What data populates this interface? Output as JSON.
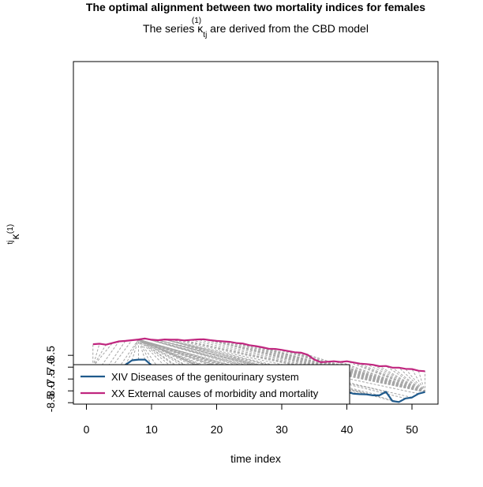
{
  "chart_data": {
    "type": "line",
    "title": "The optimal alignment between two mortality indices for females",
    "subtitle_prefix": "The series κ",
    "subtitle_sup": "(1)",
    "subtitle_sub": "tj",
    "subtitle_suffix": " are derived from the CBD model",
    "xlabel": "time index",
    "ylabel_main": "κ",
    "ylabel_sup": "(1)",
    "ylabel_sub": "tj",
    "xlim": [
      -2,
      54
    ],
    "ylim": [
      -8.56,
      5.9
    ],
    "xticks": [
      0,
      10,
      20,
      30,
      40,
      50
    ],
    "yticks": [
      -6.5,
      -7.0,
      -7.5,
      -8.0,
      -8.5
    ],
    "ytick_labels": [
      "-6.5",
      "-7.0",
      "-7.5",
      "-8.0",
      "-8.5"
    ],
    "grid": false,
    "legend_position": "bottom-left",
    "series": [
      {
        "name": "XIV Diseases of the genitourinary system",
        "color": "#1f5a8c",
        "x": [
          1,
          2,
          3,
          4,
          5,
          6,
          7,
          8,
          9,
          10,
          11,
          12,
          13,
          14,
          15,
          16,
          17,
          18,
          19,
          20,
          21,
          22,
          23,
          24,
          25,
          26,
          27,
          28,
          29,
          30,
          31,
          32,
          33,
          34,
          35,
          36,
          37,
          38,
          39,
          40,
          41,
          42,
          43,
          44,
          45,
          46,
          47,
          48,
          49,
          50,
          51,
          52
        ],
        "values": [
          -6.98,
          -7.06,
          -7.08,
          -6.96,
          -7.01,
          -6.9,
          -6.71,
          -6.68,
          -6.68,
          -6.92,
          -7.02,
          -6.94,
          -6.97,
          -7.03,
          -7.16,
          -7.15,
          -7.21,
          -7.32,
          -7.29,
          -7.32,
          -7.41,
          -7.57,
          -7.62,
          -7.63,
          -7.79,
          -7.78,
          -7.66,
          -7.81,
          -7.78,
          -7.73,
          -7.92,
          -7.82,
          -7.9,
          -7.83,
          -7.98,
          -7.96,
          -8.03,
          -8.01,
          -8.07,
          -8.04,
          -8.12,
          -8.14,
          -8.15,
          -8.19,
          -8.19,
          -8.04,
          -8.43,
          -8.47,
          -8.32,
          -8.28,
          -8.12,
          -8.05
        ]
      },
      {
        "name": "XX External causes of morbidity and mortality",
        "color": "#c0267f",
        "x": [
          1,
          2,
          3,
          4,
          5,
          6,
          7,
          8,
          9,
          10,
          11,
          12,
          13,
          14,
          15,
          16,
          17,
          18,
          19,
          20,
          21,
          22,
          23,
          24,
          25,
          26,
          27,
          28,
          29,
          30,
          31,
          32,
          33,
          34,
          35,
          36,
          37,
          38,
          39,
          40,
          41,
          42,
          43,
          44,
          45,
          46,
          47,
          48,
          49,
          50,
          51,
          52
        ],
        "values": [
          -6.03,
          -6.01,
          -6.05,
          -5.98,
          -5.91,
          -5.89,
          -5.86,
          -5.83,
          -5.79,
          -5.84,
          -5.86,
          -5.83,
          -5.84,
          -5.84,
          -5.87,
          -5.85,
          -5.83,
          -5.82,
          -5.86,
          -5.89,
          -5.91,
          -5.93,
          -5.98,
          -6.0,
          -6.07,
          -6.11,
          -6.16,
          -6.22,
          -6.23,
          -6.27,
          -6.32,
          -6.37,
          -6.39,
          -6.48,
          -6.68,
          -6.79,
          -6.77,
          -6.75,
          -6.78,
          -6.75,
          -6.8,
          -6.85,
          -6.87,
          -6.9,
          -6.96,
          -6.95,
          -7.02,
          -7.02,
          -7.07,
          -7.08,
          -7.15,
          -7.17
        ]
      }
    ],
    "alignment_pairs": [
      [
        1,
        1
      ],
      [
        1,
        2
      ],
      [
        1,
        3
      ],
      [
        1,
        4
      ],
      [
        2,
        5
      ],
      [
        3,
        6
      ],
      [
        4,
        7
      ],
      [
        5,
        8
      ],
      [
        6,
        8
      ],
      [
        7,
        8
      ],
      [
        8,
        8
      ],
      [
        9,
        8
      ],
      [
        10,
        8
      ],
      [
        11,
        8
      ],
      [
        12,
        8
      ],
      [
        13,
        8
      ],
      [
        14,
        8
      ],
      [
        15,
        8
      ],
      [
        16,
        8
      ],
      [
        17,
        8
      ],
      [
        18,
        8
      ],
      [
        19,
        8
      ],
      [
        20,
        8
      ],
      [
        21,
        8
      ],
      [
        22,
        8
      ],
      [
        23,
        8
      ],
      [
        24,
        8
      ],
      [
        25,
        8
      ],
      [
        26,
        8
      ],
      [
        27,
        8
      ],
      [
        28,
        8
      ],
      [
        29,
        8
      ],
      [
        30,
        8
      ],
      [
        31,
        8
      ],
      [
        32,
        8
      ],
      [
        33,
        8
      ],
      [
        34,
        8
      ],
      [
        35,
        8
      ],
      [
        36,
        8
      ],
      [
        37,
        9
      ],
      [
        38,
        9
      ],
      [
        39,
        9
      ],
      [
        40,
        9
      ],
      [
        41,
        10
      ],
      [
        42,
        11
      ],
      [
        43,
        11
      ],
      [
        44,
        11
      ],
      [
        45,
        11
      ],
      [
        46,
        11
      ],
      [
        47,
        12
      ],
      [
        48,
        12
      ],
      [
        49,
        12
      ],
      [
        50,
        12
      ],
      [
        51,
        12
      ],
      [
        52,
        13
      ],
      [
        52,
        14
      ],
      [
        52,
        15
      ],
      [
        52,
        16
      ],
      [
        52,
        17
      ],
      [
        52,
        18
      ],
      [
        52,
        19
      ],
      [
        52,
        20
      ],
      [
        52,
        21
      ],
      [
        52,
        22
      ],
      [
        52,
        23
      ],
      [
        52,
        24
      ],
      [
        52,
        25
      ],
      [
        52,
        26
      ],
      [
        52,
        27
      ],
      [
        52,
        28
      ],
      [
        52,
        29
      ],
      [
        52,
        30
      ],
      [
        52,
        31
      ],
      [
        52,
        32
      ],
      [
        52,
        33
      ],
      [
        52,
        34
      ],
      [
        52,
        35
      ],
      [
        52,
        36
      ],
      [
        52,
        37
      ],
      [
        52,
        38
      ],
      [
        52,
        39
      ],
      [
        52,
        40
      ],
      [
        52,
        41
      ],
      [
        52,
        42
      ],
      [
        52,
        43
      ],
      [
        52,
        44
      ],
      [
        52,
        45
      ],
      [
        52,
        46
      ],
      [
        52,
        47
      ],
      [
        52,
        48
      ],
      [
        52,
        49
      ],
      [
        52,
        50
      ],
      [
        52,
        51
      ],
      [
        52,
        52
      ]
    ]
  }
}
